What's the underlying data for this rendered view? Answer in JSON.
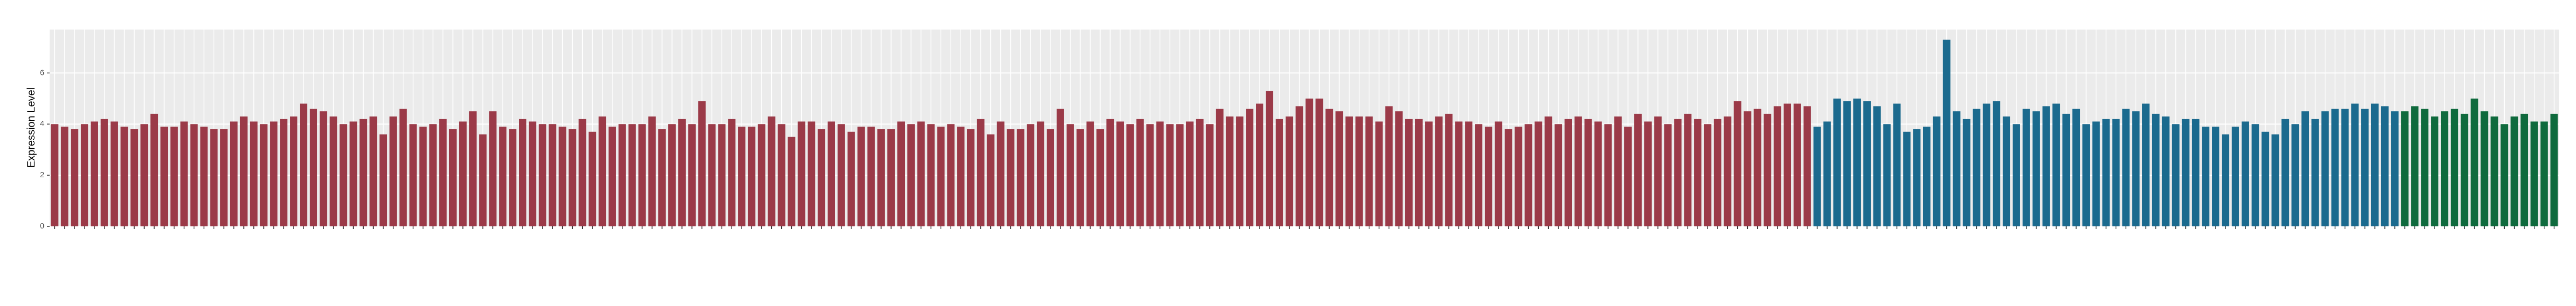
{
  "chart_data": {
    "type": "bar",
    "y_label": "Expression Level",
    "ylim": [
      0,
      7.7
    ],
    "yticks": [
      0,
      2,
      4,
      6
    ],
    "grid": true,
    "background": "#ebebeb",
    "series": [
      {
        "color": "#9b3a48",
        "values": [
          4.0,
          3.9,
          3.8,
          4.0,
          4.1,
          4.2,
          4.1,
          3.9,
          3.8,
          4.0,
          4.4,
          3.9,
          3.9,
          4.1,
          4.0,
          3.9,
          3.8,
          3.8,
          4.1,
          4.3,
          4.1,
          4.0,
          4.1,
          4.2,
          4.3,
          4.8,
          4.6,
          4.5,
          4.3,
          4.0,
          4.1,
          4.2,
          4.3,
          3.6,
          4.3,
          4.6,
          4.0,
          3.9,
          4.0,
          4.2,
          3.8,
          4.1,
          4.5,
          3.6,
          4.5,
          3.9,
          3.8,
          4.2,
          4.1,
          4.0,
          4.0,
          3.9,
          3.8,
          4.2,
          3.7,
          4.3,
          3.9,
          4.0,
          4.0,
          4.0,
          4.3,
          3.8,
          4.0,
          4.2,
          4.0,
          4.9,
          4.0,
          4.0,
          4.2,
          3.9,
          3.9,
          4.0,
          4.3,
          4.0,
          3.5,
          4.1,
          4.1,
          3.8,
          4.1,
          4.0,
          3.7,
          3.9,
          3.9,
          3.8,
          3.8,
          4.1,
          4.0,
          4.1,
          4.0,
          3.9,
          4.0,
          3.9,
          3.8,
          4.2,
          3.6,
          4.1,
          3.8,
          3.8,
          4.0,
          4.1,
          3.8,
          4.6,
          4.0,
          3.8,
          4.1,
          3.8,
          4.2,
          4.1,
          4.0,
          4.2,
          4.0,
          4.1,
          4.0,
          4.0,
          4.1,
          4.2,
          4.0,
          4.6,
          4.3,
          4.3,
          4.6,
          4.8,
          5.3,
          4.2,
          4.3,
          4.7,
          5.0,
          5.0,
          4.6,
          4.5,
          4.3,
          4.3,
          4.3,
          4.1,
          4.7,
          4.5,
          4.2,
          4.2,
          4.1,
          4.3,
          4.4,
          4.1,
          4.1,
          4.0,
          3.9,
          4.1,
          3.8,
          3.9,
          4.0,
          4.1,
          4.3,
          4.0,
          4.2,
          4.3,
          4.2,
          4.1,
          4.0,
          4.3,
          3.9,
          4.4,
          4.1,
          4.3,
          4.0,
          4.2,
          4.4,
          4.2,
          4.0,
          4.2,
          4.3,
          4.9,
          4.5,
          4.6,
          4.4,
          4.7,
          4.8,
          4.8,
          4.7
        ]
      },
      {
        "color": "#1b6a8e",
        "values": [
          3.9,
          4.1,
          5.0,
          4.9,
          5.0,
          4.9,
          4.7,
          4.0,
          4.8,
          3.7,
          3.8,
          3.9,
          4.3,
          7.3,
          4.5,
          4.2,
          4.6,
          4.8,
          4.9,
          4.3,
          4.0,
          4.6,
          4.5,
          4.7,
          4.8,
          4.4,
          4.6,
          4.0,
          4.1,
          4.2,
          4.2,
          4.6,
          4.5,
          4.8,
          4.4,
          4.3,
          4.0,
          4.2,
          4.2,
          3.9,
          3.9,
          3.6,
          3.9,
          4.1,
          4.0,
          3.7,
          3.6,
          4.2,
          4.0,
          4.5,
          4.2,
          4.5,
          4.6,
          4.6,
          4.8,
          4.6,
          4.8,
          4.7,
          4.5
        ]
      },
      {
        "color": "#0f6a3d",
        "values": [
          4.5,
          4.7,
          4.6,
          4.3,
          4.5,
          4.6,
          4.4,
          5.0,
          4.5,
          4.3,
          4.0,
          4.3,
          4.4,
          4.1,
          4.1,
          4.4
        ]
      }
    ]
  }
}
